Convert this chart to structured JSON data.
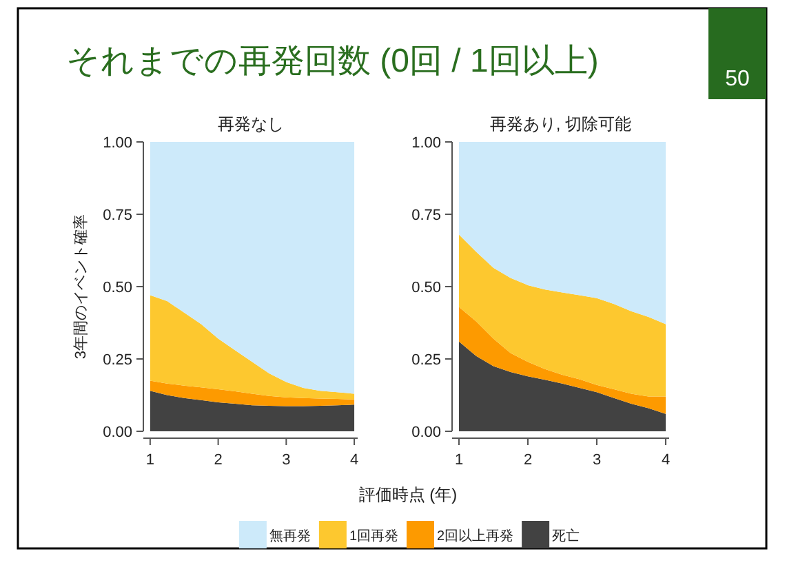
{
  "chart_data": [
    {
      "type": "area",
      "stacked": true,
      "title": "再発なし",
      "ylabel": "3年間のイベント確率",
      "xlabel": "評価時点 (年)",
      "legend": "bottom",
      "annotations": [
        "それまでの再発回数 (0回 / 1回以上)",
        "50"
      ],
      "xlim": [
        0.9,
        4.05
      ],
      "xticks": [
        1,
        2,
        3,
        4
      ],
      "ylim": [
        0,
        1
      ],
      "yticks": [
        {
          "value": 0,
          "label": "0.00"
        },
        {
          "value": 0.25,
          "label": "0.25"
        },
        {
          "value": 0.5,
          "label": "0.50"
        },
        {
          "value": 0.75,
          "label": "0.75"
        },
        {
          "value": 1,
          "label": "1.00"
        }
      ],
      "x": [
        1,
        1.25,
        1.5,
        1.75,
        2,
        2.25,
        2.5,
        2.75,
        3,
        3.25,
        3.5,
        3.75,
        4
      ],
      "series": [
        {
          "name": "死亡",
          "color": "#424242",
          "values": [
            0.14,
            0.125,
            0.115,
            0.108,
            0.1,
            0.095,
            0.09,
            0.088,
            0.087,
            0.087,
            0.088,
            0.09,
            0.092
          ]
        },
        {
          "name": "2回以上再発",
          "color": "#fd9a00",
          "values": [
            0.035,
            0.04,
            0.043,
            0.044,
            0.045,
            0.043,
            0.04,
            0.034,
            0.03,
            0.028,
            0.025,
            0.022,
            0.018
          ]
        },
        {
          "name": "1回再発",
          "color": "#fdc82f",
          "values": [
            0.295,
            0.285,
            0.252,
            0.218,
            0.175,
            0.142,
            0.11,
            0.078,
            0.053,
            0.035,
            0.027,
            0.023,
            0.02
          ]
        },
        {
          "name": "無再発",
          "color": "#cdeafa",
          "values": [
            0.53,
            0.55,
            0.59,
            0.63,
            0.68,
            0.72,
            0.76,
            0.8,
            0.83,
            0.85,
            0.86,
            0.865,
            0.87
          ]
        }
      ]
    },
    {
      "type": "area",
      "stacked": true,
      "title": "再発あり, 切除可能",
      "xlim": [
        0.9,
        4.05
      ],
      "xticks": [
        1,
        2,
        3,
        4
      ],
      "ylim": [
        0,
        1
      ],
      "yticks": [
        {
          "value": 0,
          "label": "0.00"
        },
        {
          "value": 0.25,
          "label": "0.25"
        },
        {
          "value": 0.5,
          "label": "0.50"
        },
        {
          "value": 0.75,
          "label": "0.75"
        },
        {
          "value": 1,
          "label": "1.00"
        }
      ],
      "x": [
        1,
        1.25,
        1.5,
        1.75,
        2,
        2.25,
        2.5,
        2.75,
        3,
        3.25,
        3.5,
        3.75,
        4
      ],
      "series": [
        {
          "color": "#424242",
          "values": [
            0.31,
            0.26,
            0.225,
            0.205,
            0.19,
            0.178,
            0.165,
            0.15,
            0.135,
            0.115,
            0.095,
            0.08,
            0.06
          ]
        },
        {
          "color": "#fd9a00",
          "values": [
            0.12,
            0.12,
            0.095,
            0.065,
            0.05,
            0.037,
            0.03,
            0.03,
            0.025,
            0.03,
            0.035,
            0.04,
            0.06
          ]
        },
        {
          "color": "#fdc82f",
          "values": [
            0.25,
            0.24,
            0.245,
            0.26,
            0.265,
            0.275,
            0.285,
            0.29,
            0.3,
            0.295,
            0.285,
            0.275,
            0.25
          ]
        },
        {
          "color": "#cdeafa",
          "values": [
            0.32,
            0.38,
            0.435,
            0.47,
            0.495,
            0.51,
            0.52,
            0.53,
            0.54,
            0.56,
            0.585,
            0.605,
            0.63
          ]
        }
      ]
    }
  ]
}
